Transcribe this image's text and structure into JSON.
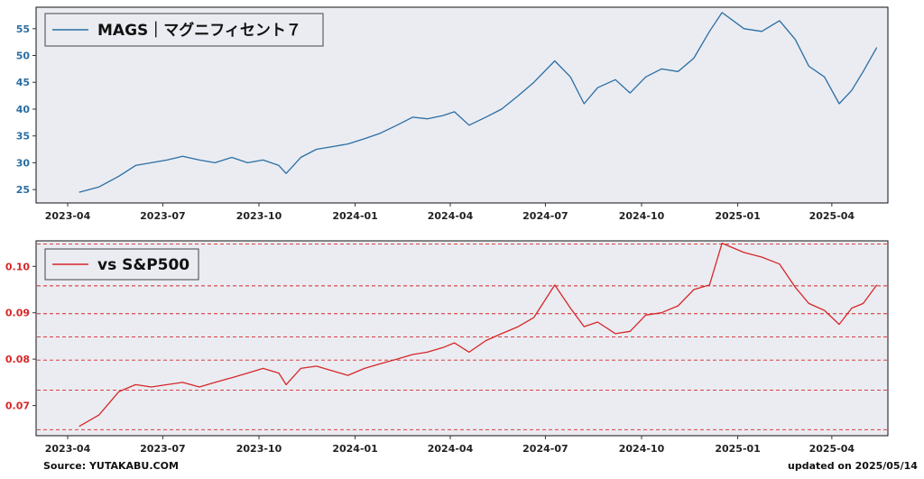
{
  "chart_data": [
    {
      "type": "line",
      "legend": "MAGS｜マグニフィセント７",
      "legend_position": "top-left",
      "color": "#2a6ea3",
      "x_ticks": [
        "2023-04",
        "2023-07",
        "2023-10",
        "2024-01",
        "2024-04",
        "2024-07",
        "2024-10",
        "2025-01",
        "2025-04"
      ],
      "y_ticks": [
        25,
        30,
        35,
        40,
        45,
        50,
        55
      ],
      "ylim": [
        22.5,
        59
      ],
      "grid": false,
      "x": [
        "2023-04-12",
        "2023-05-01",
        "2023-05-20",
        "2023-06-05",
        "2023-06-20",
        "2023-07-05",
        "2023-07-20",
        "2023-08-05",
        "2023-08-20",
        "2023-09-05",
        "2023-09-20",
        "2023-10-05",
        "2023-10-20",
        "2023-10-27",
        "2023-11-10",
        "2023-11-25",
        "2023-12-10",
        "2023-12-25",
        "2024-01-10",
        "2024-01-25",
        "2024-02-10",
        "2024-02-25",
        "2024-03-10",
        "2024-03-25",
        "2024-04-05",
        "2024-04-19",
        "2024-05-05",
        "2024-05-20",
        "2024-06-05",
        "2024-06-20",
        "2024-07-10",
        "2024-07-25",
        "2024-08-07",
        "2024-08-20",
        "2024-09-06",
        "2024-09-20",
        "2024-10-05",
        "2024-10-20",
        "2024-11-05",
        "2024-11-20",
        "2024-12-05",
        "2024-12-17",
        "2025-01-07",
        "2025-01-24",
        "2025-02-10",
        "2025-02-25",
        "2025-03-10",
        "2025-03-25",
        "2025-04-08",
        "2025-04-20",
        "2025-05-01",
        "2025-05-14"
      ],
      "y": [
        24.5,
        25.5,
        27.5,
        29.5,
        30.0,
        30.5,
        31.2,
        30.5,
        30.0,
        31.0,
        30.0,
        30.5,
        29.5,
        28.0,
        31.0,
        32.5,
        33.0,
        33.5,
        34.5,
        35.5,
        37.0,
        38.5,
        38.2,
        38.8,
        39.5,
        37.0,
        38.5,
        40.0,
        42.5,
        45.0,
        49.0,
        46.0,
        41.0,
        44.0,
        45.5,
        43.0,
        46.0,
        47.5,
        47.0,
        49.5,
        54.5,
        58.0,
        55.0,
        54.5,
        56.5,
        53.0,
        48.0,
        46.0,
        41.0,
        43.5,
        47.0,
        51.5
      ]
    },
    {
      "type": "line",
      "legend": "vs S&P500",
      "legend_position": "top-left",
      "color": "#d62728",
      "x_ticks": [
        "2023-04",
        "2023-07",
        "2023-10",
        "2024-01",
        "2024-04",
        "2024-07",
        "2024-10",
        "2025-01",
        "2025-04"
      ],
      "y_ticks": [
        0.07,
        0.08,
        0.09,
        0.1
      ],
      "ylim": [
        0.0635,
        0.1055
      ],
      "grid": false,
      "reference_lines": [
        0.0648,
        0.0733,
        0.0798,
        0.0848,
        0.0898,
        0.0958,
        0.1048
      ],
      "x": [
        "2023-04-12",
        "2023-05-01",
        "2023-05-20",
        "2023-06-05",
        "2023-06-20",
        "2023-07-05",
        "2023-07-20",
        "2023-08-05",
        "2023-08-20",
        "2023-09-05",
        "2023-09-20",
        "2023-10-05",
        "2023-10-20",
        "2023-10-27",
        "2023-11-10",
        "2023-11-25",
        "2023-12-10",
        "2023-12-25",
        "2024-01-10",
        "2024-01-25",
        "2024-02-10",
        "2024-02-25",
        "2024-03-10",
        "2024-03-25",
        "2024-04-05",
        "2024-04-19",
        "2024-05-05",
        "2024-05-20",
        "2024-06-05",
        "2024-06-20",
        "2024-07-10",
        "2024-07-25",
        "2024-08-07",
        "2024-08-20",
        "2024-09-06",
        "2024-09-20",
        "2024-10-05",
        "2024-10-20",
        "2024-11-05",
        "2024-11-20",
        "2024-12-05",
        "2024-12-17",
        "2025-01-07",
        "2025-01-24",
        "2025-02-10",
        "2025-02-25",
        "2025-03-10",
        "2025-03-25",
        "2025-04-08",
        "2025-04-20",
        "2025-05-01",
        "2025-05-14"
      ],
      "y": [
        0.0655,
        0.068,
        0.073,
        0.0745,
        0.074,
        0.0745,
        0.075,
        0.074,
        0.075,
        0.076,
        0.077,
        0.078,
        0.077,
        0.0745,
        0.078,
        0.0785,
        0.0775,
        0.0765,
        0.078,
        0.079,
        0.08,
        0.081,
        0.0815,
        0.0825,
        0.0835,
        0.0815,
        0.084,
        0.0855,
        0.087,
        0.089,
        0.096,
        0.091,
        0.087,
        0.088,
        0.0855,
        0.086,
        0.0895,
        0.09,
        0.0915,
        0.095,
        0.096,
        0.105,
        0.103,
        0.102,
        0.1005,
        0.0955,
        0.092,
        0.0905,
        0.0875,
        0.091,
        0.092,
        0.096
      ]
    }
  ],
  "footer": {
    "source": "Source: YUTAKABU.COM",
    "updated": "updated on 2025/05/14"
  }
}
